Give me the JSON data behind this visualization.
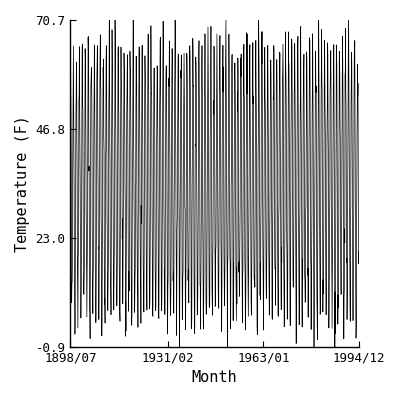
{
  "title": "",
  "xlabel": "Month",
  "ylabel": "Temperature (F)",
  "start_year": 1898,
  "start_month": 7,
  "end_year": 1994,
  "end_month": 12,
  "mean_temp": 34.9,
  "amplitude": 29.0,
  "ylim": [
    -0.9,
    70.7
  ],
  "yticks": [
    -0.9,
    23.0,
    46.8,
    70.7
  ],
  "xtick_labels": [
    "1898/07",
    "1931/02",
    "1963/01",
    "1994/12"
  ],
  "line_color": "#000000",
  "bg_color": "#ffffff",
  "font_family": "monospace"
}
